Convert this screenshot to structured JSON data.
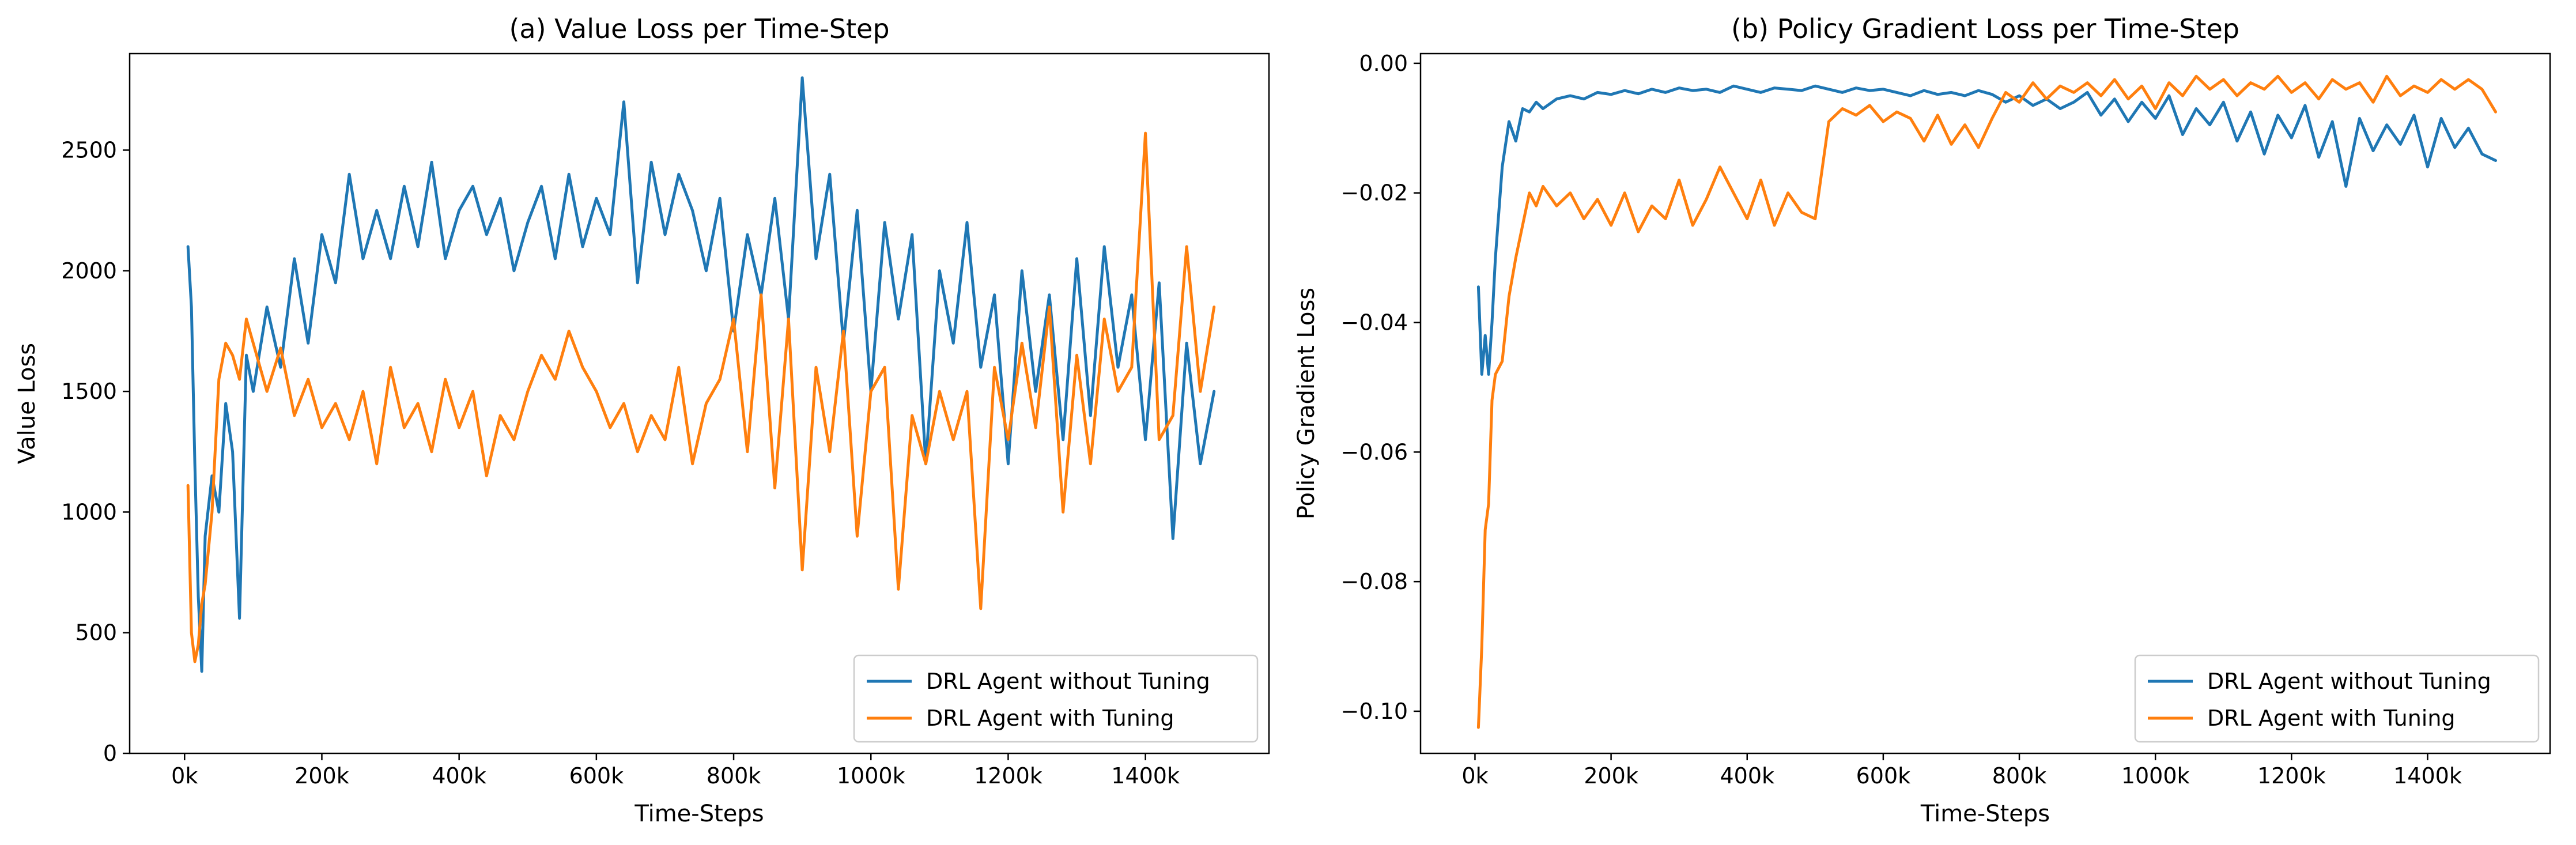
{
  "chart_data": [
    {
      "type": "line",
      "title": "(a) Value Loss per Time-Step",
      "xlabel": "Time-Steps",
      "ylabel": "Value Loss",
      "xlim": [
        -80000,
        1580000
      ],
      "ylim": [
        0,
        2900
      ],
      "xticks": [
        0,
        200000,
        400000,
        600000,
        800000,
        1000000,
        1200000,
        1400000
      ],
      "xtick_labels": [
        "0k",
        "200k",
        "400k",
        "600k",
        "800k",
        "1000k",
        "1200k",
        "1400k"
      ],
      "yticks": [
        0,
        500,
        1000,
        1500,
        2000,
        2500
      ],
      "ytick_labels": [
        "0",
        "500",
        "1000",
        "1500",
        "2000",
        "2500"
      ],
      "legend_position": "lower-right",
      "series": [
        {
          "name": "DRL Agent without Tuning",
          "color": "#1f77b4",
          "x": [
            5000,
            10000,
            15000,
            20000,
            25000,
            30000,
            40000,
            50000,
            60000,
            70000,
            80000,
            90000,
            100000,
            120000,
            140000,
            160000,
            180000,
            200000,
            220000,
            240000,
            260000,
            280000,
            300000,
            320000,
            340000,
            360000,
            380000,
            400000,
            420000,
            440000,
            460000,
            480000,
            500000,
            520000,
            540000,
            560000,
            580000,
            600000,
            620000,
            640000,
            660000,
            680000,
            700000,
            720000,
            740000,
            760000,
            780000,
            800000,
            820000,
            840000,
            860000,
            880000,
            900000,
            920000,
            940000,
            960000,
            980000,
            1000000,
            1020000,
            1040000,
            1060000,
            1080000,
            1100000,
            1120000,
            1140000,
            1160000,
            1180000,
            1200000,
            1220000,
            1240000,
            1260000,
            1280000,
            1300000,
            1320000,
            1340000,
            1360000,
            1380000,
            1400000,
            1420000,
            1440000,
            1460000,
            1480000,
            1500000
          ],
          "y": [
            2100,
            1850,
            1200,
            650,
            340,
            900,
            1150,
            1000,
            1450,
            1250,
            560,
            1650,
            1500,
            1850,
            1600,
            2050,
            1700,
            2150,
            1950,
            2400,
            2050,
            2250,
            2050,
            2350,
            2100,
            2450,
            2050,
            2250,
            2350,
            2150,
            2300,
            2000,
            2200,
            2350,
            2050,
            2400,
            2100,
            2300,
            2150,
            2700,
            1950,
            2450,
            2150,
            2400,
            2250,
            2000,
            2300,
            1750,
            2150,
            1900,
            2300,
            1800,
            2800,
            2050,
            2400,
            1700,
            2250,
            1500,
            2200,
            1800,
            2150,
            1200,
            2000,
            1700,
            2200,
            1600,
            1900,
            1200,
            2000,
            1500,
            1900,
            1300,
            2050,
            1400,
            2100,
            1600,
            1900,
            1300,
            1950,
            890,
            1700,
            1200,
            1500
          ]
        },
        {
          "name": "DRL Agent with Tuning",
          "color": "#ff7f0e",
          "x": [
            5000,
            10000,
            15000,
            20000,
            25000,
            30000,
            40000,
            50000,
            60000,
            70000,
            80000,
            90000,
            100000,
            120000,
            140000,
            160000,
            180000,
            200000,
            220000,
            240000,
            260000,
            280000,
            300000,
            320000,
            340000,
            360000,
            380000,
            400000,
            420000,
            440000,
            460000,
            480000,
            500000,
            520000,
            540000,
            560000,
            580000,
            600000,
            620000,
            640000,
            660000,
            680000,
            700000,
            720000,
            740000,
            760000,
            780000,
            800000,
            820000,
            840000,
            860000,
            880000,
            900000,
            920000,
            940000,
            960000,
            980000,
            1000000,
            1020000,
            1040000,
            1060000,
            1080000,
            1100000,
            1120000,
            1140000,
            1160000,
            1180000,
            1200000,
            1220000,
            1240000,
            1260000,
            1280000,
            1300000,
            1320000,
            1340000,
            1360000,
            1380000,
            1400000,
            1420000,
            1440000,
            1460000,
            1480000,
            1500000
          ],
          "y": [
            1110,
            500,
            380,
            450,
            620,
            700,
            1000,
            1550,
            1700,
            1650,
            1550,
            1800,
            1700,
            1500,
            1680,
            1400,
            1550,
            1350,
            1450,
            1300,
            1500,
            1200,
            1600,
            1350,
            1450,
            1250,
            1550,
            1350,
            1500,
            1150,
            1400,
            1300,
            1500,
            1650,
            1550,
            1750,
            1600,
            1500,
            1350,
            1450,
            1250,
            1400,
            1300,
            1600,
            1200,
            1450,
            1550,
            1800,
            1250,
            1900,
            1100,
            1800,
            760,
            1600,
            1250,
            1750,
            900,
            1500,
            1600,
            680,
            1400,
            1200,
            1500,
            1300,
            1500,
            600,
            1600,
            1300,
            1700,
            1350,
            1850,
            1000,
            1650,
            1200,
            1800,
            1500,
            1600,
            2570,
            1300,
            1400,
            2100,
            1500,
            1850
          ]
        }
      ]
    },
    {
      "type": "line",
      "title": "(b) Policy Gradient Loss per Time-Step",
      "xlabel": "Time-Steps",
      "ylabel": "Policy Gradient Loss",
      "xlim": [
        -80000,
        1580000
      ],
      "ylim": [
        -0.1065,
        0.0015
      ],
      "xticks": [
        0,
        200000,
        400000,
        600000,
        800000,
        1000000,
        1200000,
        1400000
      ],
      "xtick_labels": [
        "0k",
        "200k",
        "400k",
        "600k",
        "800k",
        "1000k",
        "1200k",
        "1400k"
      ],
      "yticks": [
        0.0,
        -0.02,
        -0.04,
        -0.06,
        -0.08,
        -0.1
      ],
      "ytick_labels": [
        "0.00",
        "−0.02",
        "−0.04",
        "−0.06",
        "−0.08",
        "−0.10"
      ],
      "legend_position": "lower-right",
      "series": [
        {
          "name": "DRL Agent without Tuning",
          "color": "#1f77b4",
          "x": [
            5000,
            10000,
            15000,
            20000,
            25000,
            30000,
            40000,
            50000,
            60000,
            70000,
            80000,
            90000,
            100000,
            120000,
            140000,
            160000,
            180000,
            200000,
            220000,
            240000,
            260000,
            280000,
            300000,
            320000,
            340000,
            360000,
            380000,
            400000,
            420000,
            440000,
            460000,
            480000,
            500000,
            520000,
            540000,
            560000,
            580000,
            600000,
            620000,
            640000,
            660000,
            680000,
            700000,
            720000,
            740000,
            760000,
            780000,
            800000,
            820000,
            840000,
            860000,
            880000,
            900000,
            920000,
            940000,
            960000,
            980000,
            1000000,
            1020000,
            1040000,
            1060000,
            1080000,
            1100000,
            1120000,
            1140000,
            1160000,
            1180000,
            1200000,
            1220000,
            1240000,
            1260000,
            1280000,
            1300000,
            1320000,
            1340000,
            1360000,
            1380000,
            1400000,
            1420000,
            1440000,
            1460000,
            1480000,
            1500000
          ],
          "y": [
            -0.0345,
            -0.048,
            -0.042,
            -0.048,
            -0.04,
            -0.03,
            -0.016,
            -0.009,
            -0.012,
            -0.007,
            -0.0075,
            -0.006,
            -0.007,
            -0.0055,
            -0.005,
            -0.0055,
            -0.0045,
            -0.0048,
            -0.0042,
            -0.0047,
            -0.004,
            -0.0045,
            -0.0038,
            -0.0042,
            -0.004,
            -0.0045,
            -0.0035,
            -0.004,
            -0.0045,
            -0.0038,
            -0.004,
            -0.0042,
            -0.0035,
            -0.004,
            -0.0045,
            -0.0038,
            -0.0042,
            -0.004,
            -0.0045,
            -0.005,
            -0.0042,
            -0.0048,
            -0.0045,
            -0.005,
            -0.0042,
            -0.0048,
            -0.006,
            -0.005,
            -0.0065,
            -0.0055,
            -0.007,
            -0.006,
            -0.0045,
            -0.008,
            -0.0055,
            -0.009,
            -0.006,
            -0.0085,
            -0.005,
            -0.011,
            -0.007,
            -0.0095,
            -0.006,
            -0.012,
            -0.0075,
            -0.014,
            -0.008,
            -0.0115,
            -0.0065,
            -0.0145,
            -0.009,
            -0.019,
            -0.0085,
            -0.0135,
            -0.0095,
            -0.0125,
            -0.008,
            -0.016,
            -0.0085,
            -0.013,
            -0.01,
            -0.014,
            -0.015
          ]
        },
        {
          "name": "DRL Agent with Tuning",
          "color": "#ff7f0e",
          "x": [
            5000,
            10000,
            15000,
            20000,
            25000,
            30000,
            40000,
            50000,
            60000,
            70000,
            80000,
            90000,
            100000,
            120000,
            140000,
            160000,
            180000,
            200000,
            220000,
            240000,
            260000,
            280000,
            300000,
            320000,
            340000,
            360000,
            380000,
            400000,
            420000,
            440000,
            460000,
            480000,
            500000,
            520000,
            540000,
            560000,
            580000,
            600000,
            620000,
            640000,
            660000,
            680000,
            700000,
            720000,
            740000,
            760000,
            780000,
            800000,
            820000,
            840000,
            860000,
            880000,
            900000,
            920000,
            940000,
            960000,
            980000,
            1000000,
            1020000,
            1040000,
            1060000,
            1080000,
            1100000,
            1120000,
            1140000,
            1160000,
            1180000,
            1200000,
            1220000,
            1240000,
            1260000,
            1280000,
            1300000,
            1320000,
            1340000,
            1360000,
            1380000,
            1400000,
            1420000,
            1440000,
            1460000,
            1480000,
            1500000
          ],
          "y": [
            -0.1025,
            -0.09,
            -0.072,
            -0.068,
            -0.052,
            -0.048,
            -0.046,
            -0.036,
            -0.03,
            -0.025,
            -0.02,
            -0.022,
            -0.019,
            -0.022,
            -0.02,
            -0.024,
            -0.021,
            -0.025,
            -0.02,
            -0.026,
            -0.022,
            -0.024,
            -0.018,
            -0.025,
            -0.021,
            -0.016,
            -0.02,
            -0.024,
            -0.018,
            -0.025,
            -0.02,
            -0.023,
            -0.024,
            -0.009,
            -0.007,
            -0.008,
            -0.0065,
            -0.009,
            -0.0075,
            -0.0085,
            -0.012,
            -0.008,
            -0.0125,
            -0.0095,
            -0.013,
            -0.0085,
            -0.0045,
            -0.006,
            -0.003,
            -0.0055,
            -0.0035,
            -0.0045,
            -0.003,
            -0.005,
            -0.0025,
            -0.0055,
            -0.0035,
            -0.007,
            -0.003,
            -0.005,
            -0.002,
            -0.004,
            -0.0025,
            -0.005,
            -0.003,
            -0.004,
            -0.002,
            -0.0045,
            -0.003,
            -0.0055,
            -0.0025,
            -0.004,
            -0.003,
            -0.006,
            -0.002,
            -0.005,
            -0.0035,
            -0.0045,
            -0.0025,
            -0.004,
            -0.0025,
            -0.004,
            -0.0075
          ]
        }
      ]
    }
  ]
}
